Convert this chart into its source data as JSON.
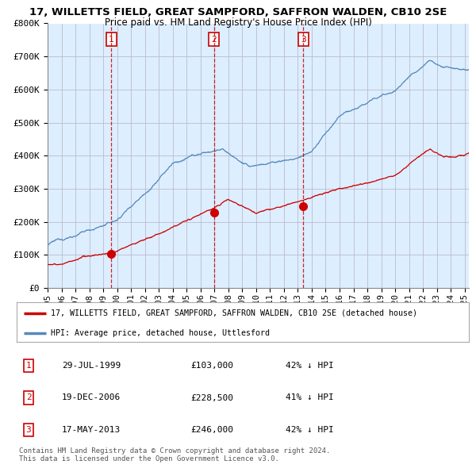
{
  "title_line1": "17, WILLETTS FIELD, GREAT SAMPFORD, SAFFRON WALDEN, CB10 2SE",
  "title_line2": "Price paid vs. HM Land Registry's House Price Index (HPI)",
  "yticks": [
    0,
    100000,
    200000,
    300000,
    400000,
    500000,
    600000,
    700000,
    800000
  ],
  "ytick_labels": [
    "£0",
    "£100K",
    "£200K",
    "£300K",
    "£400K",
    "£500K",
    "£600K",
    "£700K",
    "£800K"
  ],
  "xmin": 1995.0,
  "xmax": 2025.3,
  "ymin": 0,
  "ymax": 800000,
  "sale_color": "#cc0000",
  "hpi_color": "#5588bb",
  "chart_bg": "#ddeeff",
  "sale_label": "17, WILLETTS FIELD, GREAT SAMPFORD, SAFFRON WALDEN, CB10 2SE (detached house)",
  "hpi_label": "HPI: Average price, detached house, Uttlesford",
  "transactions": [
    {
      "num": 1,
      "date_str": "29-JUL-1999",
      "date_x": 1999.58,
      "price": 103000,
      "hpi_pct": "42% ↓ HPI"
    },
    {
      "num": 2,
      "date_str": "19-DEC-2006",
      "date_x": 2006.97,
      "price": 228500,
      "hpi_pct": "41% ↓ HPI"
    },
    {
      "num": 3,
      "date_str": "17-MAY-2013",
      "date_x": 2013.38,
      "price": 246000,
      "hpi_pct": "42% ↓ HPI"
    }
  ],
  "footnote1": "Contains HM Land Registry data © Crown copyright and database right 2024.",
  "footnote2": "This data is licensed under the Open Government Licence v3.0.",
  "bg_color": "#ffffff",
  "grid_color": "#bbbbcc"
}
